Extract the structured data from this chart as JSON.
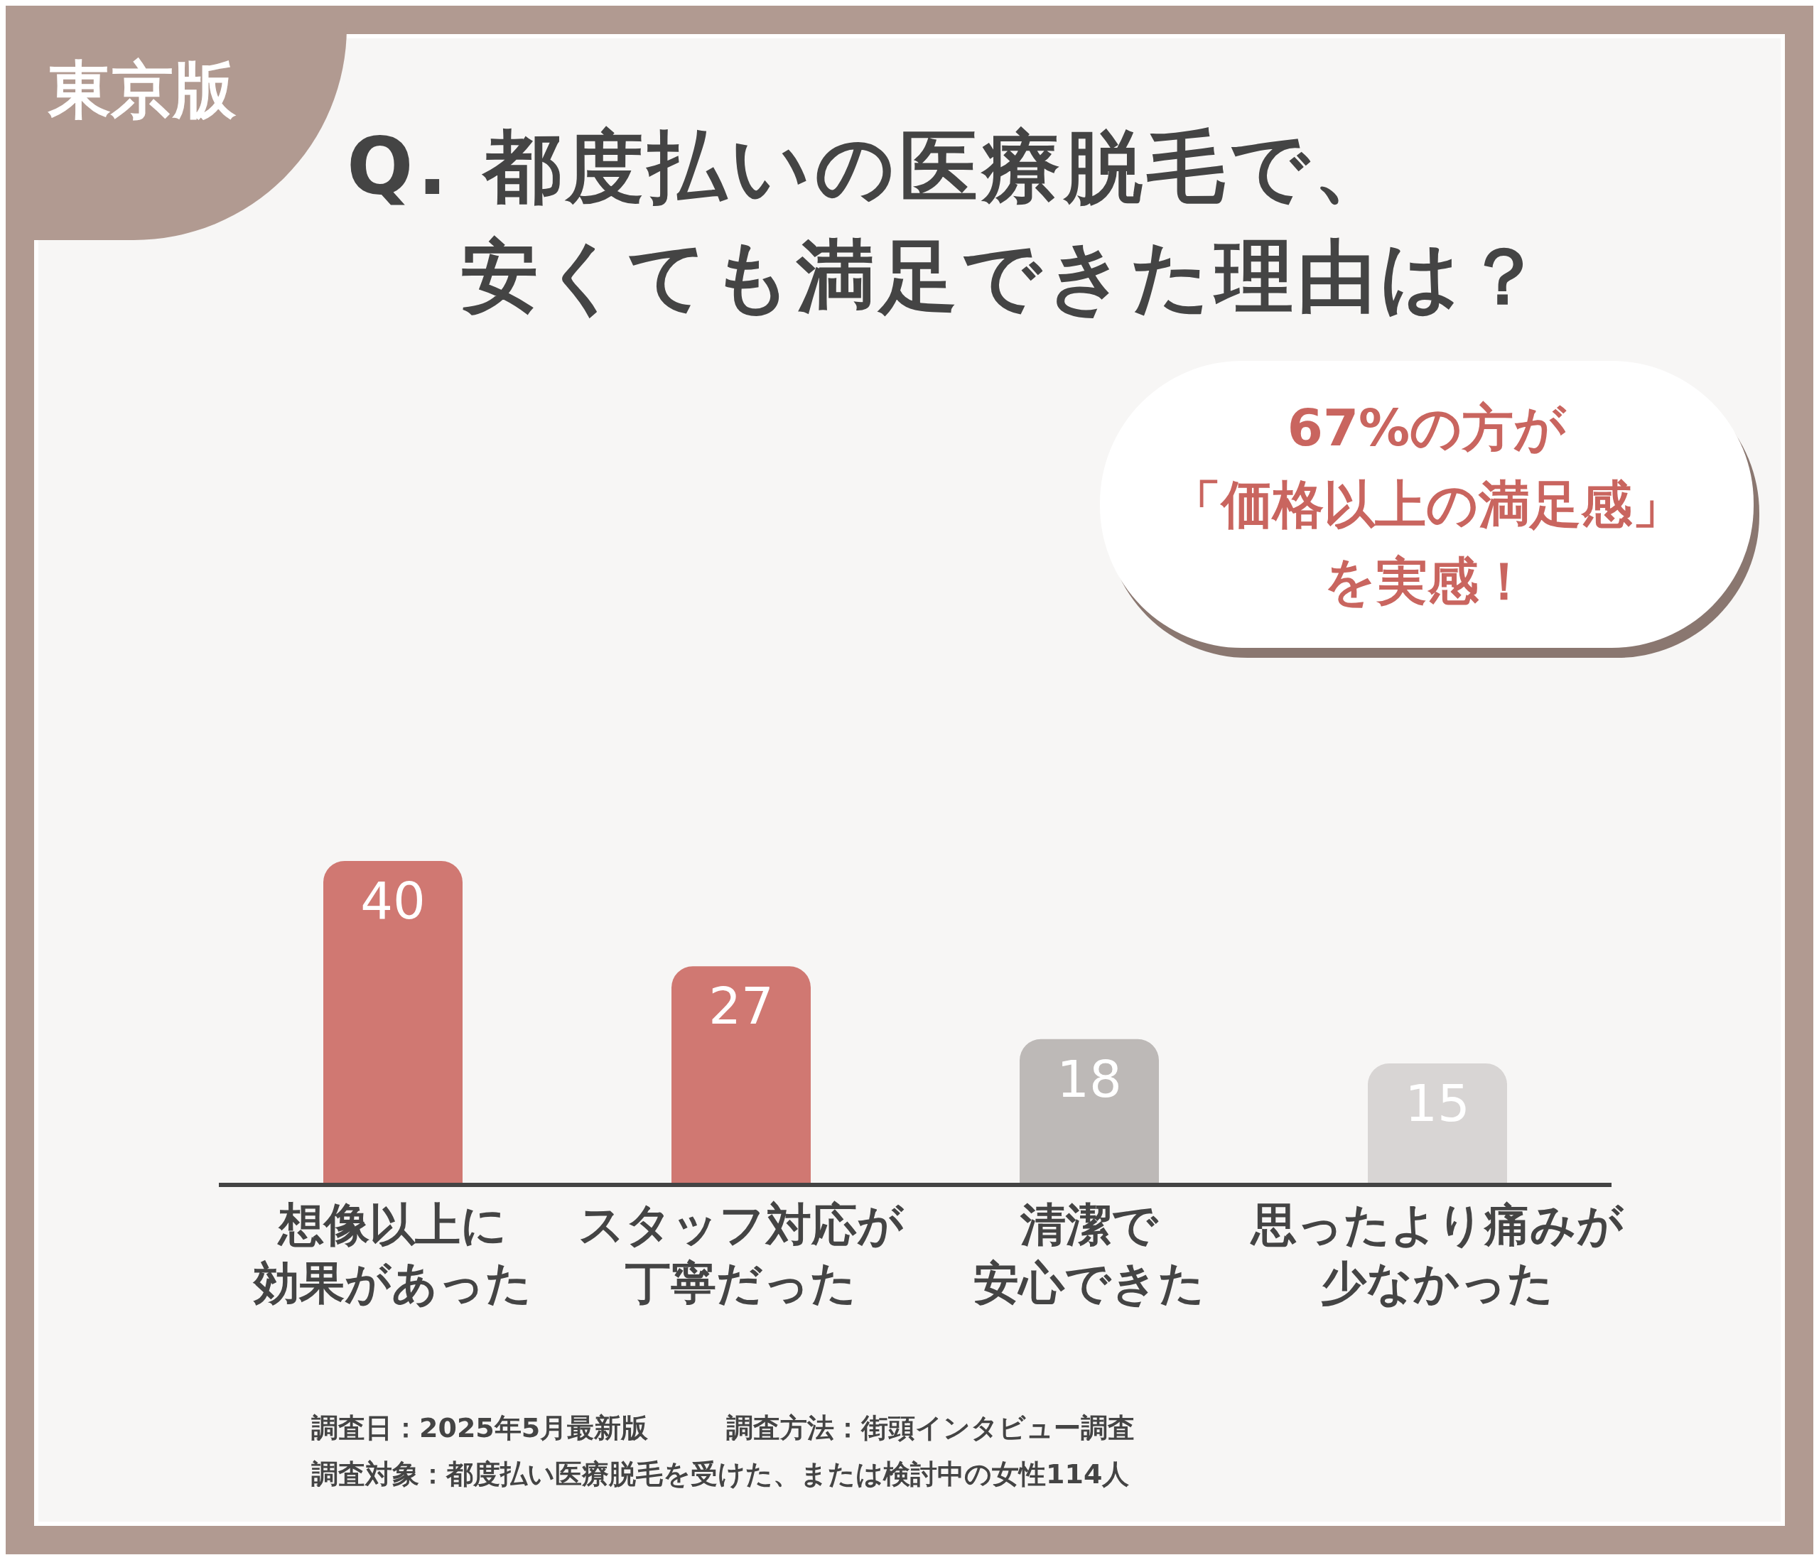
{
  "chart_data": {
    "type": "bar",
    "title": "Q. 都度払いの医療脱毛で、安くても満足できた理由は？",
    "subtitle": "東京版",
    "categories": [
      "想像以上に効果があった",
      "スタッフ対応が丁寧だった",
      "清潔で安心できた",
      "思ったより痛みが少なかった"
    ],
    "values": [
      40,
      27,
      18,
      15
    ],
    "colors": [
      "#d07872",
      "#d07872",
      "#bdb9b7",
      "#d8d5d4"
    ],
    "data_labels": true,
    "annotations": [
      "67%の方が「価格以上の満足感」を実感！",
      "調査日：2025年5月最新版",
      "調査方法：街頭インタビュー調査",
      "調査対象：都度払い医療脱毛を受けた、または検討中の女性114人"
    ]
  }
}
